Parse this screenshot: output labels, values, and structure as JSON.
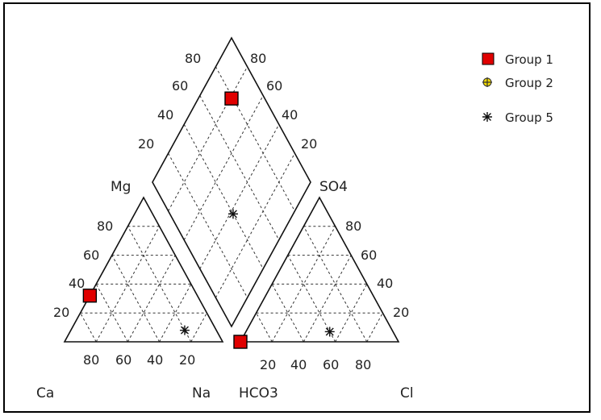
{
  "chart_data": {
    "type": "scatter",
    "subtype": "piper",
    "labels": {
      "mg": "Mg",
      "so4": "SO4",
      "ca": "Ca",
      "na": "Na",
      "hco3": "HCO3",
      "cl": "Cl"
    },
    "ticks": {
      "diamond_left": [
        "80",
        "60",
        "40",
        "20"
      ],
      "diamond_right": [
        "80",
        "60",
        "40",
        "20"
      ],
      "cation_left": [
        "80",
        "60",
        "40",
        "20"
      ],
      "cation_bottom": [
        "80",
        "60",
        "40",
        "20"
      ],
      "anion_right": [
        "80",
        "60",
        "40",
        "20"
      ],
      "anion_bottom": [
        "20",
        "40",
        "60",
        "80"
      ]
    },
    "legend": {
      "position": "top-right",
      "items": [
        {
          "name": "Group 1",
          "marker": "square",
          "color": "#e00000"
        },
        {
          "name": "Group 2",
          "marker": "circle-plus",
          "color": "#f0d800"
        },
        {
          "name": "Group 5",
          "marker": "asterisk",
          "color": "#111111"
        }
      ]
    },
    "series": [
      {
        "name": "Group 1",
        "cation": {
          "ca": 68,
          "mg": 32,
          "na": 0
        },
        "anion": {
          "hco3": 100,
          "so4": 0,
          "cl": 0
        },
        "diamond": {
          "left_axis": 79,
          "right_axis": 79
        }
      },
      {
        "name": "Group 5",
        "cation": {
          "ca": 20,
          "mg": 8,
          "na": 72
        },
        "anion": {
          "hco3": 40,
          "so4": 7,
          "cl": 53
        },
        "diamond": {
          "left_axis": 40,
          "right_axis": 38
        }
      }
    ],
    "grid": true
  }
}
